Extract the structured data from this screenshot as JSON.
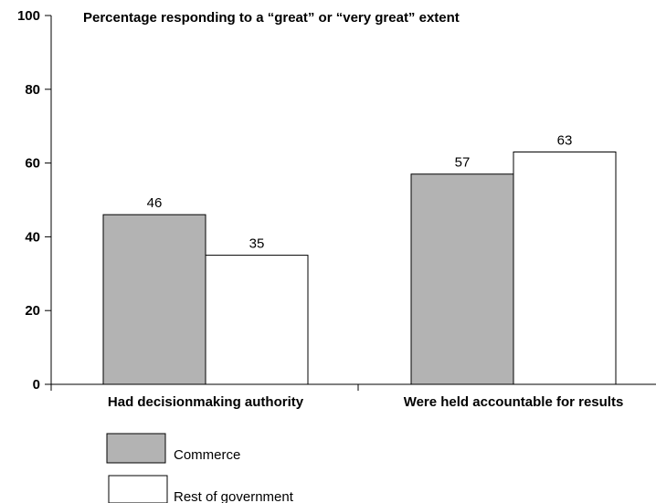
{
  "chart_data": {
    "type": "bar",
    "title": "Percentage responding to a “great” or “very great” extent",
    "xlabel": "",
    "ylabel": "",
    "ylim": [
      0,
      100
    ],
    "yticks": [
      "0",
      "20",
      "40",
      "60",
      "80",
      "100"
    ],
    "categories": [
      "Had decisionmaking authority",
      "Were held accountable for results"
    ],
    "series": [
      {
        "name": "Commerce",
        "values": [
          46,
          57
        ],
        "color": "#b3b3b3"
      },
      {
        "name": "Rest of government",
        "values": [
          35,
          63
        ],
        "color": "#ffffff"
      }
    ],
    "grid": false,
    "legend_position": "bottom-left"
  }
}
